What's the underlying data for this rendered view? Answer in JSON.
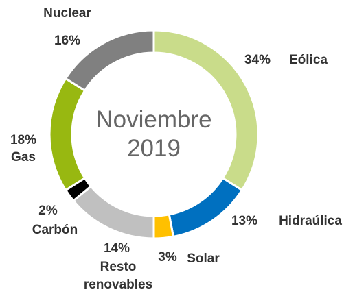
{
  "chart_data": {
    "type": "donut",
    "title": "Noviembre 2019",
    "categories": [
      "Eólica",
      "Hidraúlica",
      "Solar",
      "Resto renovables",
      "Carbón",
      "Gas",
      "Nuclear"
    ],
    "values": [
      34,
      13,
      3,
      14,
      2,
      18,
      16
    ],
    "value_labels": [
      "34%",
      "13%",
      "3%",
      "14%",
      "2%",
      "18%",
      "16%"
    ],
    "colors": [
      "#c9dc8a",
      "#0070c0",
      "#ffc000",
      "#c0c0c0",
      "#000000",
      "#98b811",
      "#808080"
    ]
  }
}
